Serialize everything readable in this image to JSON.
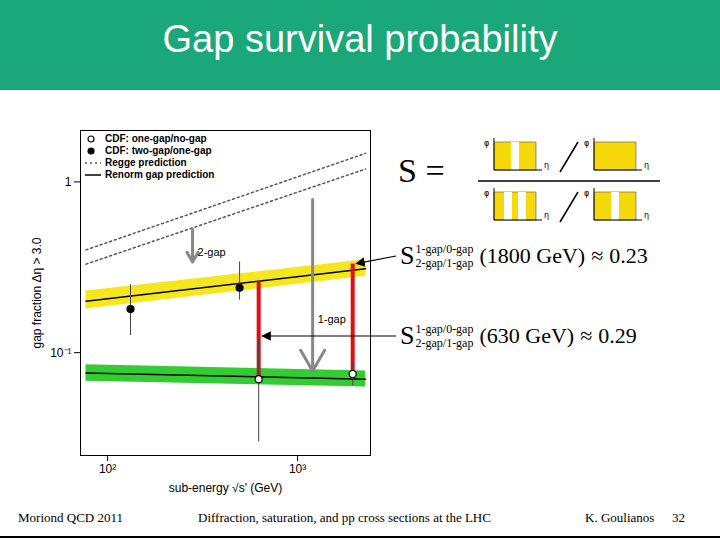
{
  "header": {
    "title": "Gap survival probability"
  },
  "chart_data": {
    "type": "scatter",
    "xlabel": "sub-energy √s' (GeV)",
    "ylabel": "gap fraction Δη > 3.0",
    "log": true,
    "xlim": [
      72,
      2420
    ],
    "ylim": [
      0.025,
      2.0
    ],
    "xticks": [
      {
        "value": 100,
        "label": "10²"
      },
      {
        "value": 1000,
        "label": "10³"
      }
    ],
    "yticks": [
      {
        "value": 0.1,
        "label": "10⁻¹"
      },
      1
    ],
    "legend": "top-left",
    "series": [
      {
        "name": "CDF: one-gap/no-gap",
        "type": "scatter",
        "marker": "open circle",
        "color": "#000000",
        "x": [
          624,
          1950
        ],
        "values": [
          0.07,
          0.075
        ],
        "error_low": [
          0.03,
          0.064
        ],
        "error_high": [
          0.118,
          0.087
        ]
      },
      {
        "name": "CDF: two-gap/one-gap",
        "type": "scatter",
        "marker": "filled circle",
        "color": "#000000",
        "x": [
          132,
          495
        ],
        "values": [
          0.18,
          0.24
        ],
        "error_low": [
          0.126,
          0.203
        ],
        "error_high": [
          0.25,
          0.34
        ]
      },
      {
        "name": "Regge prediction",
        "type": "line",
        "line_style": "dotted",
        "color": "#555555",
        "curves": [
          {
            "x": [
              77,
              2280
            ],
            "values": [
              0.4,
              1.47
            ]
          },
          {
            "x": [
              77,
              2280
            ],
            "values": [
              0.33,
              1.19
            ]
          }
        ]
      },
      {
        "name": "Renorm gap prediction",
        "type": "line",
        "line_style": "solid",
        "color": "#000000",
        "curves": [
          {
            "x": [
              77,
              2280
            ],
            "values": [
              0.2,
              0.31
            ],
            "band_low": [
              0.18,
              0.28
            ],
            "band_high": [
              0.23,
              0.35
            ],
            "band_color": "#f5e61e"
          },
          {
            "x": [
              77,
              2280
            ],
            "values": [
              0.076,
              0.07
            ],
            "band_low": [
              0.068,
              0.063
            ],
            "band_high": [
              0.085,
              0.078
            ],
            "band_color": "#33cc33"
          }
        ]
      }
    ],
    "annotations": [
      {
        "text": "2-gap",
        "x": 280,
        "y_from": 0.53,
        "y_to": 0.34,
        "color": "#888888"
      },
      {
        "text": "1-gap",
        "x": 1200,
        "y_from": 0.79,
        "y_to": 0.078,
        "color": "#888888"
      }
    ],
    "gap_lines": [
      {
        "x": 1950,
        "y_from": 0.33,
        "y_to": 0.073,
        "color": "#dd1111",
        "estimate": {
          "symbol": "S",
          "superscript": "1-gap/0-gap",
          "subscript": "2-gap/1-gap",
          "energy": "(1800 GeV)",
          "relation": "≈",
          "value": 0.23
        }
      },
      {
        "x": 624,
        "y_from": 0.26,
        "y_to": 0.07,
        "color": "#dd1111",
        "estimate": {
          "symbol": "S",
          "superscript": "1-gap/0-gap",
          "subscript": "2-gap/1-gap",
          "energy": "(630 GeV)",
          "relation": "≈",
          "value": 0.29
        }
      }
    ]
  },
  "formula": {
    "symbol": "S",
    "equals": "=",
    "icon_axis_labels": [
      "φ",
      "η"
    ]
  },
  "footer": {
    "left": "Moriond QCD 2011",
    "center": "Diffraction, saturation, and pp cross sections at the LHC",
    "author": "K. Goulianos",
    "page": 32
  }
}
